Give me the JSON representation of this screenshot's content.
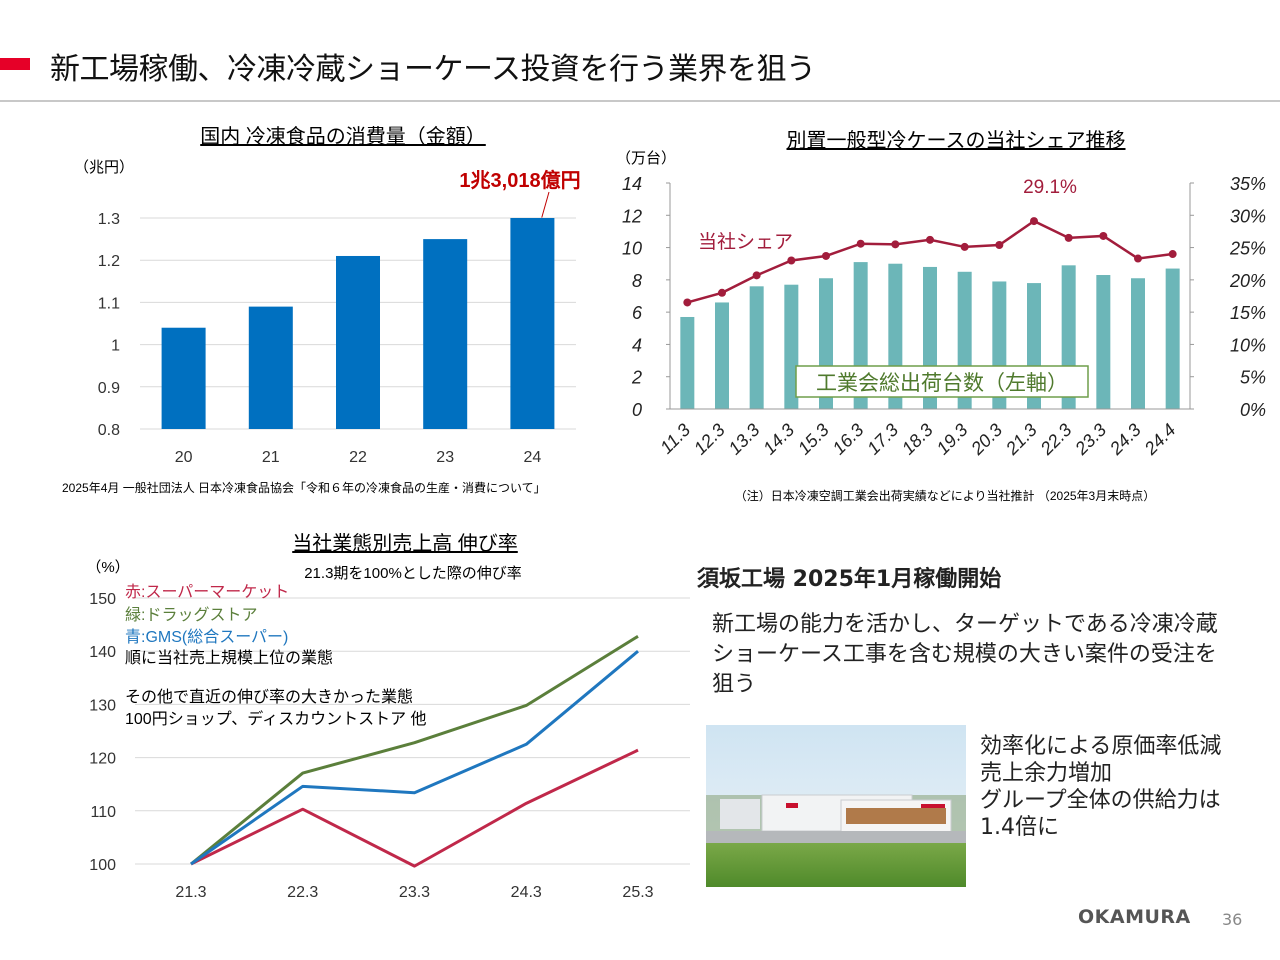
{
  "header": {
    "title": "新工場稼働、冷凍冷蔵ショーケース投資を行う業界を狙う"
  },
  "colors": {
    "accent": "#e60028",
    "bar_blue": "#0070c0",
    "bar_teal": "#6cb6b8",
    "share_red": "#a21d3c",
    "supermarket": "#c0284a",
    "drugstore": "#5b7f3b",
    "gms": "#1f77bf"
  },
  "chart_data": [
    {
      "id": "frozen-food-consumption",
      "type": "bar",
      "title": "国内 冷凍食品の消費量（金額）",
      "ylabel": "（兆円）",
      "categories": [
        "20",
        "21",
        "22",
        "23",
        "24"
      ],
      "values": [
        1.04,
        1.09,
        1.21,
        1.25,
        1.3
      ],
      "ylim": [
        0.8,
        1.3
      ],
      "yticks": [
        "0.8",
        "0.9",
        "1",
        "1.1",
        "1.2",
        "1.3"
      ],
      "grid": true,
      "annotation": "1兆3,018億円",
      "source": "2025年4月 一般社団法人 日本冷凍食品協会「令和６年の冷凍食品の生産・消費について」"
    },
    {
      "id": "showcase-share",
      "type": "bar",
      "title": "別置一般型冷ケースの当社シェア推移",
      "ylabel_left": "（万台）",
      "categories": [
        "11.3",
        "12.3",
        "13.3",
        "14.3",
        "15.3",
        "16.3",
        "17.3",
        "18.3",
        "19.3",
        "20.3",
        "21.3",
        "22.3",
        "23.3",
        "24.3",
        "24.4"
      ],
      "series": [
        {
          "name": "工業会総出荷台数（左軸）",
          "type": "bar",
          "axis": "left",
          "values": [
            5.7,
            6.6,
            7.6,
            7.7,
            8.1,
            9.1,
            9.0,
            8.8,
            8.5,
            7.9,
            7.8,
            8.9,
            8.3,
            8.1,
            8.7
          ]
        },
        {
          "name": "当社シェア",
          "type": "line",
          "axis": "right",
          "values": [
            16.5,
            18.0,
            20.7,
            23.0,
            23.7,
            25.6,
            25.5,
            26.2,
            25.1,
            25.4,
            29.1,
            26.5,
            26.8,
            23.3,
            24.0
          ]
        }
      ],
      "ylim_left": [
        0,
        14
      ],
      "yticks_left": [
        "0",
        "2",
        "4",
        "6",
        "8",
        "10",
        "12",
        "14"
      ],
      "ylim_right": [
        0,
        35
      ],
      "yticks_right": [
        "0%",
        "5%",
        "10%",
        "15%",
        "20%",
        "25%",
        "30%",
        "35%"
      ],
      "peak_label": "29.1%",
      "note": "（注）日本冷凍空調工業会出荷実績などにより当社推計 （2025年3月末時点）"
    },
    {
      "id": "sales-growth",
      "type": "line",
      "title": "当社業態別売上高 伸び率",
      "subtitle": "21.3期を100%とした際の伸び率",
      "ylabel": "（%）",
      "x": [
        "21.3",
        "22.3",
        "23.3",
        "24.3",
        "25.3"
      ],
      "ylim": [
        100,
        150
      ],
      "yticks": [
        "100",
        "110",
        "120",
        "130",
        "140",
        "150"
      ],
      "grid": true,
      "series": [
        {
          "name": "赤:スーパーマーケット",
          "values": [
            100,
            110.3,
            99.6,
            111.4,
            121.4
          ]
        },
        {
          "name": "緑:ドラッグストア",
          "values": [
            100,
            117.1,
            122.8,
            129.8,
            142.8
          ]
        },
        {
          "name": "青:GMS(総合スーパー)",
          "values": [
            100,
            114.6,
            113.4,
            122.5,
            140.0
          ]
        }
      ],
      "legend_note": "順に当社売上規模上位の業態",
      "other_note_1": "その他で直近の伸び率の大きかった業態",
      "other_note_2": "100円ショップ、ディスカウントストア 他"
    }
  ],
  "factory": {
    "heading": "須坂工場 2025年1月稼働開始",
    "body": "新工場の能力を活かし、ターゲットである冷凍冷蔵ショーケース工事を含む規模の大きい案件の受注を狙う",
    "benefits": [
      "効率化による原価率低減",
      "売上余力増加",
      "グループ全体の供給力は",
      "1.4倍に"
    ]
  },
  "footer": {
    "brand": "OKAMURA",
    "page_number": "36"
  }
}
